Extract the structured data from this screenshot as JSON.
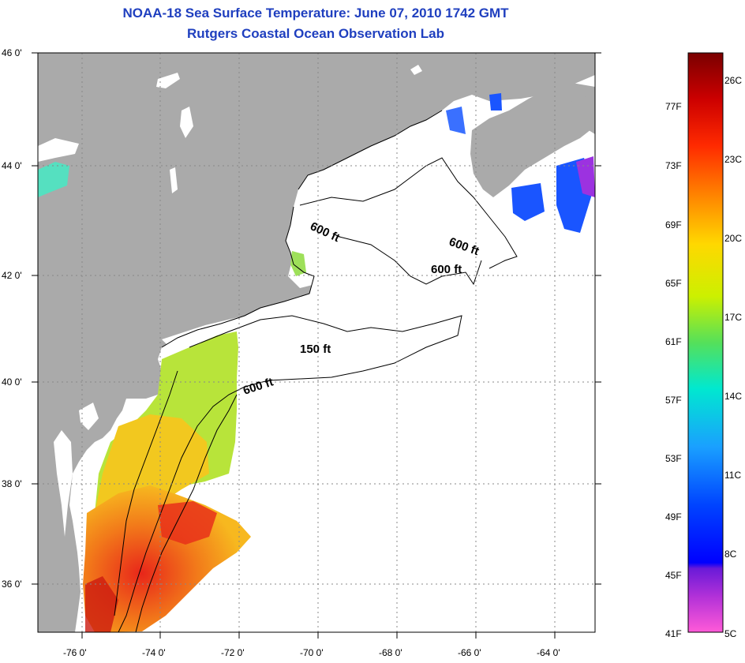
{
  "title": {
    "line1": "NOAA-18 Sea Surface Temperature:  June 07, 2010 1742 GMT",
    "line2": "Rutgers Coastal Ocean Observation Lab"
  },
  "map": {
    "lat_labels": [
      "46 0'",
      "44 0'",
      "42 0'",
      "40 0'",
      "38 0'",
      "36 0'"
    ],
    "lon_labels": [
      "-76 0'",
      "-74 0'",
      "-72 0'",
      "-70 0'",
      "-68 0'",
      "-66 0'",
      "-64 0'"
    ],
    "lat_range": [
      35,
      46
    ],
    "lon_range": [
      -77,
      -63
    ],
    "contour_labels": [
      "600 ft",
      "600 ft",
      "600 ft",
      "150 ft",
      "600 ft"
    ],
    "colors": {
      "land": "#aaaaaa",
      "water_no_data": "#ffffff",
      "grid": "#888888"
    }
  },
  "colorbar": {
    "fahrenheit_labels": [
      "77F",
      "73F",
      "69F",
      "65F",
      "61F",
      "57F",
      "53F",
      "49F",
      "45F",
      "41F"
    ],
    "celsius_labels": [
      "26C",
      "23C",
      "20C",
      "17C",
      "14C",
      "11C",
      "8C",
      "5C"
    ],
    "range_c": [
      5,
      27
    ]
  }
}
